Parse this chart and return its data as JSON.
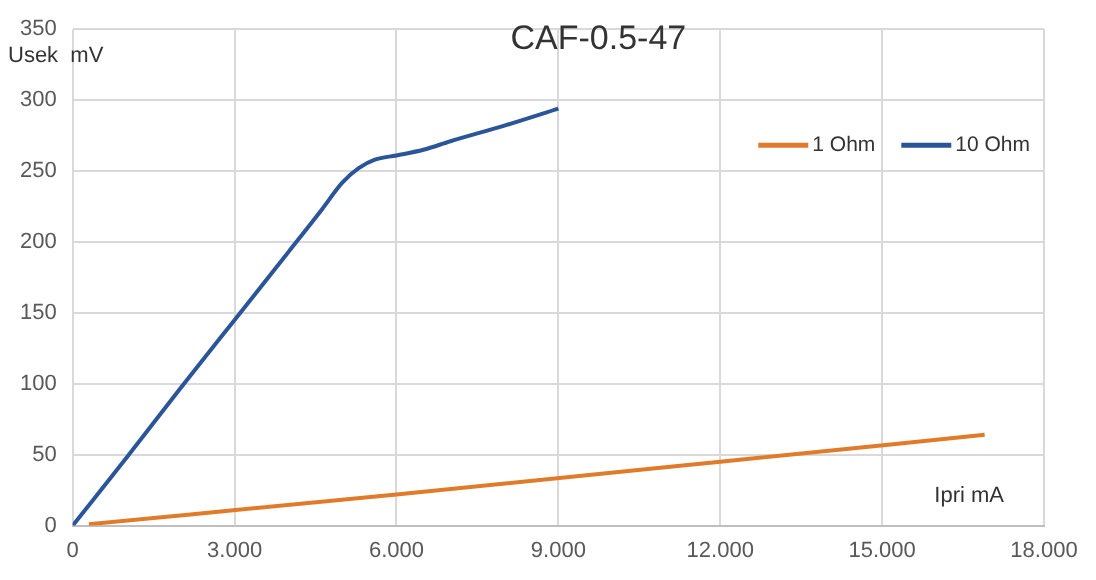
{
  "chart_data": {
    "type": "line",
    "title": "CAF-0.5-47",
    "xlabel": "Ipri mA",
    "ylabel": "Usek  mV",
    "xlim": [
      0,
      18
    ],
    "xticks": [
      0,
      {
        "value": 3,
        "label": "3.000"
      },
      {
        "value": 6,
        "label": "6.000"
      },
      {
        "value": 9,
        "label": "9.000"
      },
      {
        "value": 12,
        "label": "12.000"
      },
      {
        "value": 15,
        "label": "15.000"
      },
      {
        "value": 18,
        "label": "18.000"
      }
    ],
    "ylim": [
      0,
      350
    ],
    "yticks": [
      0,
      50,
      100,
      150,
      200,
      250,
      300,
      350
    ],
    "grid": true,
    "legend": "top right",
    "marker": "none",
    "line_style": "solid",
    "series": [
      {
        "name": "1 Ohm",
        "color": "#e07b2a",
        "x": [
          0.3,
          6,
          12,
          16.9
        ],
        "values": [
          1,
          22,
          45,
          64
        ]
      },
      {
        "name": "10 Ohm",
        "color": "#2a5599",
        "x": [
          0,
          1,
          2,
          3,
          4,
          4.6,
          5,
          5.3,
          5.6,
          6,
          6.5,
          7,
          8,
          9
        ],
        "values": [
          0,
          48,
          97,
          145,
          193,
          222,
          242,
          252,
          258,
          261,
          265,
          271,
          282,
          294
        ]
      }
    ]
  }
}
